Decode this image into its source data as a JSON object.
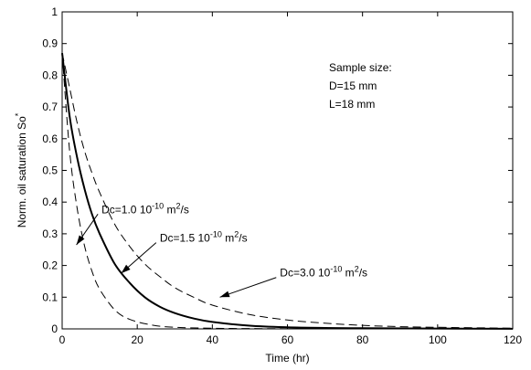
{
  "chart_data": {
    "type": "line",
    "title": "",
    "xlabel": "Time (hr)",
    "ylabel": "Norm. oil saturation So",
    "ylabel_superscript": "*",
    "xlim": [
      0,
      120
    ],
    "ylim": [
      0,
      1
    ],
    "xticks": [
      0,
      20,
      40,
      60,
      80,
      100,
      120
    ],
    "yticks": [
      0,
      0.1,
      0.2,
      0.3,
      0.4,
      0.5,
      0.6,
      0.7,
      0.8,
      0.9,
      1
    ],
    "ytick_labels": [
      "0",
      "0.1",
      "0.2",
      "0.3",
      "0.4",
      "0.5",
      "0.6",
      "0.7",
      "0.8",
      "0.9",
      "1"
    ],
    "xtick_labels": [
      "0",
      "20",
      "40",
      "60",
      "80",
      "100",
      "120"
    ],
    "grid": false,
    "sample_box": {
      "heading": "Sample size:",
      "line1": "D=15 mm",
      "line2": "L=18 mm"
    },
    "series": [
      {
        "style": "dashed",
        "color": "#000000",
        "x": [
          0,
          2,
          4,
          6,
          8,
          10,
          14,
          18,
          24,
          30,
          40,
          50,
          60,
          80,
          100,
          120
        ],
        "y": [
          0.87,
          0.56,
          0.38,
          0.26,
          0.18,
          0.125,
          0.06,
          0.03,
          0.012,
          0.005,
          0.002,
          0.001,
          0.0005,
          0.0002,
          0.0001,
          0.0001
        ]
      },
      {
        "style": "solid",
        "color": "#000000",
        "x": [
          0,
          2,
          4,
          6,
          8,
          10,
          14,
          18,
          22,
          26,
          30,
          35,
          40,
          50,
          60,
          70,
          80,
          100,
          120
        ],
        "y": [
          0.87,
          0.67,
          0.54,
          0.44,
          0.36,
          0.3,
          0.205,
          0.145,
          0.1,
          0.07,
          0.05,
          0.033,
          0.022,
          0.01,
          0.005,
          0.003,
          0.002,
          0.001,
          0.0005
        ]
      },
      {
        "style": "dashed",
        "color": "#000000",
        "x": [
          0,
          2,
          4,
          6,
          8,
          10,
          14,
          18,
          22,
          26,
          30,
          35,
          40,
          50,
          60,
          70,
          80,
          90,
          100,
          120
        ],
        "y": [
          0.87,
          0.76,
          0.65,
          0.56,
          0.49,
          0.43,
          0.33,
          0.26,
          0.205,
          0.165,
          0.13,
          0.1,
          0.075,
          0.045,
          0.028,
          0.018,
          0.011,
          0.007,
          0.005,
          0.002
        ]
      }
    ],
    "annotations": [
      {
        "prefix": "Dc=1.0 10",
        "sup": "-10",
        "mid": " m",
        "sup2": "2",
        "suffix": "/s",
        "text_x": 10.5,
        "text_y": 0.365,
        "arrow_to_x": 3.8,
        "arrow_to_y": 0.265
      },
      {
        "prefix": "Dc=1.5 10",
        "sup": "-10",
        "mid": " m",
        "sup2": "2",
        "suffix": "/s",
        "text_x": 26,
        "text_y": 0.275,
        "arrow_to_x": 15.7,
        "arrow_to_y": 0.175
      },
      {
        "prefix": "Dc=3.0 10",
        "sup": "-10",
        "mid": " m",
        "sup2": "2",
        "suffix": "/s",
        "text_x": 58,
        "text_y": 0.165,
        "arrow_to_x": 42,
        "arrow_to_y": 0.1
      }
    ]
  }
}
